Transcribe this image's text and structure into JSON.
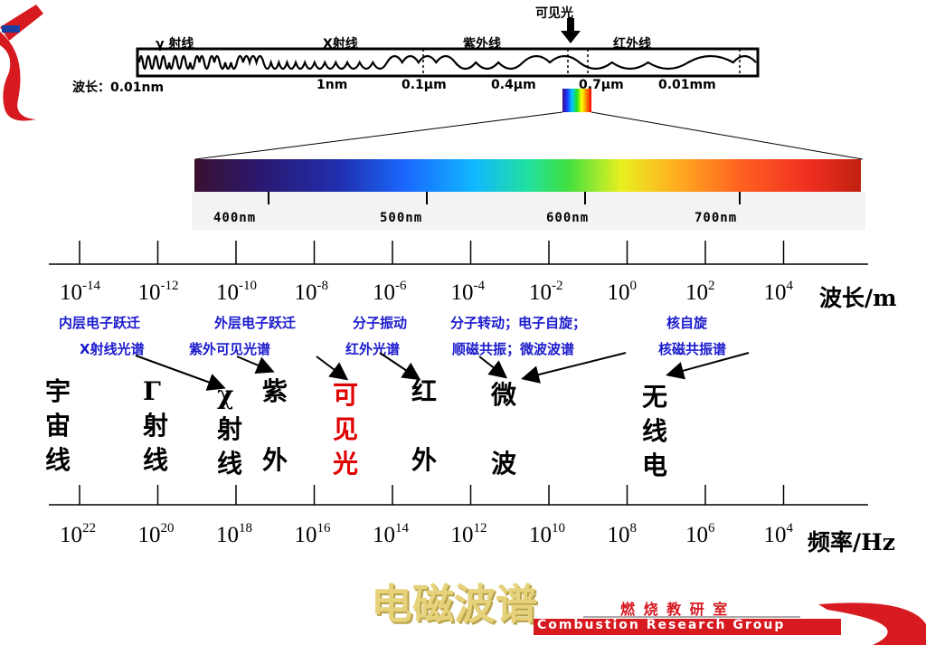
{
  "top_strip": {
    "visible_label": "可见光",
    "bands": [
      "γ 射线",
      "X射线",
      "紫外线",
      "红外线"
    ],
    "wavelength_row": [
      "波长：0.01nm",
      "1nm",
      "0.1μm",
      "0.4μm",
      "0.7μm",
      "0.01mm"
    ]
  },
  "spectrum_bar": {
    "ticks": [
      "400nm",
      "500nm",
      "600nm",
      "700nm"
    ]
  },
  "wavelength_axis": {
    "ticks": [
      {
        "base": "10",
        "exp": "-14"
      },
      {
        "base": "10",
        "exp": "-12"
      },
      {
        "base": "10",
        "exp": "-10"
      },
      {
        "base": "10",
        "exp": "-8"
      },
      {
        "base": "10",
        "exp": "-6"
      },
      {
        "base": "10",
        "exp": "-4"
      },
      {
        "base": "10",
        "exp": "-2"
      },
      {
        "base": "10",
        "exp": "0"
      },
      {
        "base": "10",
        "exp": "2"
      },
      {
        "base": "10",
        "exp": "4"
      }
    ],
    "unit": "波长/m"
  },
  "transitions_row1": [
    "内层电子跃迁",
    "外层电子跃迁",
    "分子振动",
    "分子转动；电子自旋；",
    "核自旋"
  ],
  "transitions_row2": [
    "X射线光谱",
    "紫外可见光谱",
    "红外光谱",
    "顺磁共振；微波波谱",
    "核磁共振谱"
  ],
  "regions": [
    {
      "chars": [
        "宇",
        "宙",
        "线"
      ]
    },
    {
      "chars": [
        "Γ",
        "射",
        "线"
      ]
    },
    {
      "chars": [
        "χ",
        "射",
        "线"
      ]
    },
    {
      "chars": [
        "紫",
        "外"
      ]
    },
    {
      "chars": [
        "可",
        "见",
        "光"
      ],
      "color": "#e00000"
    },
    {
      "chars": [
        "红",
        "外"
      ]
    },
    {
      "chars": [
        "微",
        "波"
      ]
    },
    {
      "chars": [
        "无",
        "线",
        "电"
      ]
    }
  ],
  "frequency_axis": {
    "ticks": [
      {
        "base": "10",
        "exp": "22"
      },
      {
        "base": "10",
        "exp": "20"
      },
      {
        "base": "10",
        "exp": "18"
      },
      {
        "base": "10",
        "exp": "16"
      },
      {
        "base": "10",
        "exp": "14"
      },
      {
        "base": "10",
        "exp": "12"
      },
      {
        "base": "10",
        "exp": "10"
      },
      {
        "base": "10",
        "exp": "8"
      },
      {
        "base": "10",
        "exp": "6"
      },
      {
        "base": "10",
        "exp": "4"
      }
    ],
    "unit": "频率/Hz"
  },
  "footer": {
    "title": "电磁波谱",
    "group_cn": "燃 烧 教 研 室",
    "group_en": "Combustion Research Group"
  },
  "colors": {
    "accent_red": "#e00000",
    "transition_blue": "#1a1acc",
    "title_gold": "#e6d27a"
  }
}
